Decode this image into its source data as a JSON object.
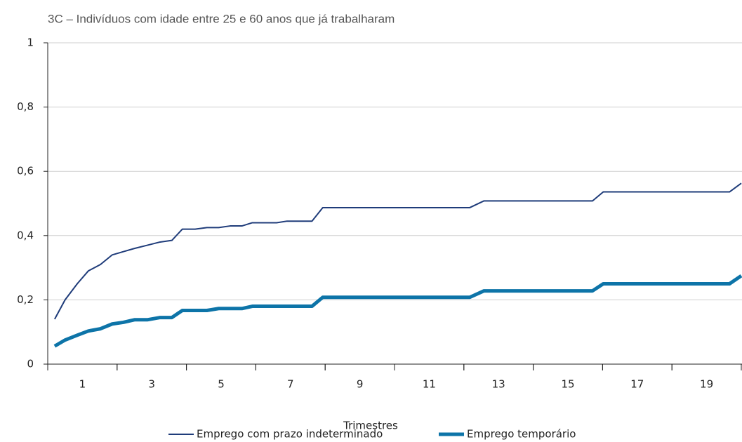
{
  "chart_data": {
    "type": "line",
    "title": "3C – Indivíduos com idade entre 25 e 60 anos que já trabalharam",
    "x_label": "Trimestres",
    "x": [
      0.2,
      0.5,
      0.85,
      1.17,
      1.52,
      1.86,
      2.18,
      2.5,
      2.87,
      3.24,
      3.58,
      3.88,
      4.25,
      4.59,
      4.93,
      5.26,
      5.6,
      5.9,
      6.6,
      6.9,
      7.62,
      7.93,
      12.17,
      12.58,
      15.71,
      16.02,
      19.66,
      20
    ],
    "series": [
      {
        "name": "Emprego com prazo indeterminado",
        "color": "#1f3c7a",
        "width": 2,
        "values": [
          0.14,
          0.2,
          0.25,
          0.29,
          0.31,
          0.34,
          0.35,
          0.36,
          0.37,
          0.38,
          0.385,
          0.42,
          0.42,
          0.425,
          0.425,
          0.43,
          0.43,
          0.44,
          0.44,
          0.445,
          0.445,
          0.487,
          0.487,
          0.508,
          0.508,
          0.536,
          0.536,
          0.563
        ]
      },
      {
        "name": "Emprego temporário",
        "color": "#0d74a8",
        "width": 5,
        "values": [
          0.056,
          0.075,
          0.09,
          0.103,
          0.11,
          0.125,
          0.13,
          0.138,
          0.138,
          0.145,
          0.145,
          0.167,
          0.167,
          0.167,
          0.173,
          0.173,
          0.173,
          0.18,
          0.18,
          0.18,
          0.18,
          0.208,
          0.208,
          0.228,
          0.228,
          0.25,
          0.25,
          0.275
        ]
      }
    ],
    "xlim": [
      0,
      20
    ],
    "xticks": [
      1,
      3,
      5,
      7,
      9,
      11,
      13,
      15,
      17,
      19
    ],
    "ylim": [
      0,
      1
    ],
    "yticks": [
      0,
      {
        "value": 0.2,
        "label": "0,2"
      },
      {
        "value": 0.4,
        "label": "0,4"
      },
      {
        "value": 0.6,
        "label": "0,6"
      },
      {
        "value": 0.8,
        "label": "0,8"
      },
      1
    ],
    "grid": true,
    "legend": "bottom"
  }
}
